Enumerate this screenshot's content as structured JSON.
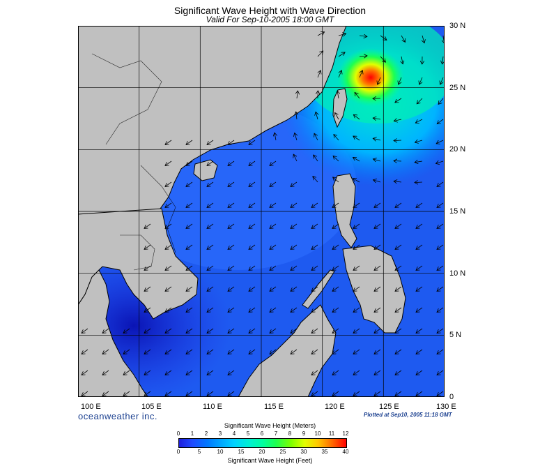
{
  "header": {
    "title": "Significant Wave Height with Wave Direction",
    "subtitle": "Valid For Sep-10-2005 18:00 GMT"
  },
  "map": {
    "lon_range": [
      100,
      130
    ],
    "lat_range": [
      0,
      30
    ],
    "lon_labels": [
      "100 E",
      "105 E",
      "110 E",
      "115 E",
      "120 E",
      "125 E",
      "130 E"
    ],
    "lat_labels": [
      "30 N",
      "25 N",
      "20 N",
      "15 N",
      "10 N",
      "5 N",
      "0"
    ],
    "land_color": "#c0c0c0",
    "max_wave_center": "storm near 25.5 N, 123.5 E"
  },
  "footer": {
    "brand": "oceanweather inc.",
    "plotted": "Plotted at Sep10, 2005 11:18 GMT"
  },
  "colorbar": {
    "title_top": "Significant Wave Height (Meters)",
    "title_bottom": "Significant Wave Height (Feet)",
    "meters_ticks": [
      "0",
      "1",
      "2",
      "3",
      "4",
      "5",
      "6",
      "7",
      "8",
      "9",
      "10",
      "11",
      "12"
    ],
    "feet_ticks": [
      "0",
      "5",
      "10",
      "15",
      "20",
      "25",
      "30",
      "35",
      "40"
    ],
    "colors": [
      "#1e1edc",
      "#1f4bff",
      "#0078ff",
      "#00a6ff",
      "#00d2ff",
      "#00f0d2",
      "#00ffa0",
      "#1eff50",
      "#7dff00",
      "#e1ff00",
      "#ffc800",
      "#ff6400",
      "#ff0000"
    ]
  }
}
